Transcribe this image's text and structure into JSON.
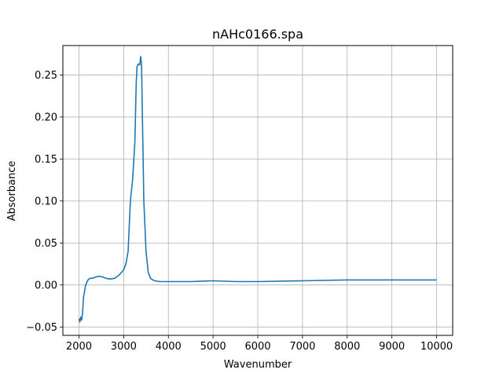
{
  "chart_data": {
    "type": "line",
    "title": "nAHc0166.spa",
    "xlabel": "Wavenumber",
    "ylabel": "Absorbance",
    "xlim": [
      1640,
      10360
    ],
    "ylim": [
      -0.06,
      0.285
    ],
    "xticks": [
      2000,
      3000,
      4000,
      5000,
      6000,
      7000,
      8000,
      9000,
      10000
    ],
    "yticks": [
      -0.05,
      0.0,
      0.05,
      0.1,
      0.15,
      0.2,
      0.25
    ],
    "ytick_labels": [
      "−0.05",
      "0.00",
      "0.05",
      "0.10",
      "0.15",
      "0.20",
      "0.25"
    ],
    "grid": true,
    "line_color": "#1f77b4",
    "series": [
      {
        "name": "",
        "x": [
          2000,
          2020,
          2040,
          2060,
          2080,
          2100,
          2150,
          2200,
          2250,
          2300,
          2350,
          2400,
          2500,
          2600,
          2700,
          2800,
          2900,
          3000,
          3050,
          3100,
          3150,
          3200,
          3250,
          3280,
          3300,
          3330,
          3360,
          3380,
          3400,
          3420,
          3450,
          3500,
          3550,
          3600,
          3650,
          3700,
          3800,
          4000,
          4500,
          5000,
          5500,
          6000,
          7000,
          8000,
          9000,
          10000
        ],
        "y": [
          -0.04,
          -0.044,
          -0.038,
          -0.042,
          -0.034,
          -0.015,
          0.0,
          0.006,
          0.008,
          0.008,
          0.009,
          0.01,
          0.01,
          0.008,
          0.007,
          0.008,
          0.012,
          0.018,
          0.025,
          0.04,
          0.1,
          0.125,
          0.17,
          0.24,
          0.26,
          0.263,
          0.262,
          0.272,
          0.262,
          0.2,
          0.1,
          0.04,
          0.015,
          0.008,
          0.006,
          0.005,
          0.004,
          0.004,
          0.004,
          0.005,
          0.004,
          0.004,
          0.005,
          0.006,
          0.006,
          0.006
        ]
      }
    ]
  }
}
